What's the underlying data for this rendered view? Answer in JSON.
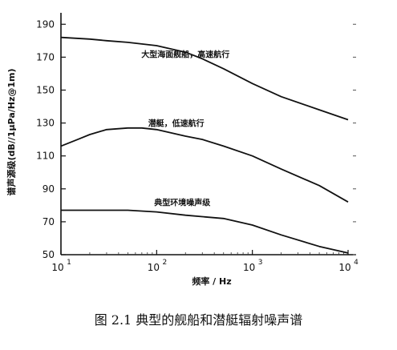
{
  "caption": "图 2.1 典型的舰船和潜艇辐射噪声谱",
  "chart_data": {
    "type": "line",
    "xlabel": "频率 / Hz",
    "ylabel": "谱声源级(dB//1μPa/Hz@1m)",
    "xscale": "log",
    "xlim": [
      10,
      10000
    ],
    "ylim": [
      50,
      195
    ],
    "xticks": [
      10,
      100,
      1000,
      10000
    ],
    "xtick_labels": [
      "10",
      "10",
      "10",
      "10"
    ],
    "xtick_exponents": [
      "1",
      "2",
      "3",
      "4"
    ],
    "yticks": [
      50,
      70,
      90,
      110,
      130,
      150,
      170,
      190
    ],
    "grid": false,
    "series": [
      {
        "name": "大型海面舰船，高速航行",
        "x": [
          10,
          20,
          30,
          50,
          100,
          200,
          300,
          500,
          1000,
          2000,
          5000,
          10000
        ],
        "y": [
          182,
          181,
          180,
          179,
          177,
          173,
          169,
          163,
          154,
          146,
          138,
          132
        ]
      },
      {
        "name": "潜艇，低速航行",
        "x": [
          10,
          15,
          20,
          30,
          50,
          70,
          100,
          200,
          300,
          500,
          1000,
          2000,
          5000,
          10000
        ],
        "y": [
          116,
          120,
          123,
          126,
          127,
          127,
          126,
          122,
          120,
          116,
          110,
          102,
          92,
          82
        ]
      },
      {
        "name": "典型环境噪声级",
        "x": [
          10,
          20,
          50,
          100,
          200,
          500,
          1000,
          2000,
          5000,
          10000
        ],
        "y": [
          77,
          77,
          77,
          76,
          74,
          72,
          68,
          62,
          55,
          51
        ]
      }
    ]
  }
}
